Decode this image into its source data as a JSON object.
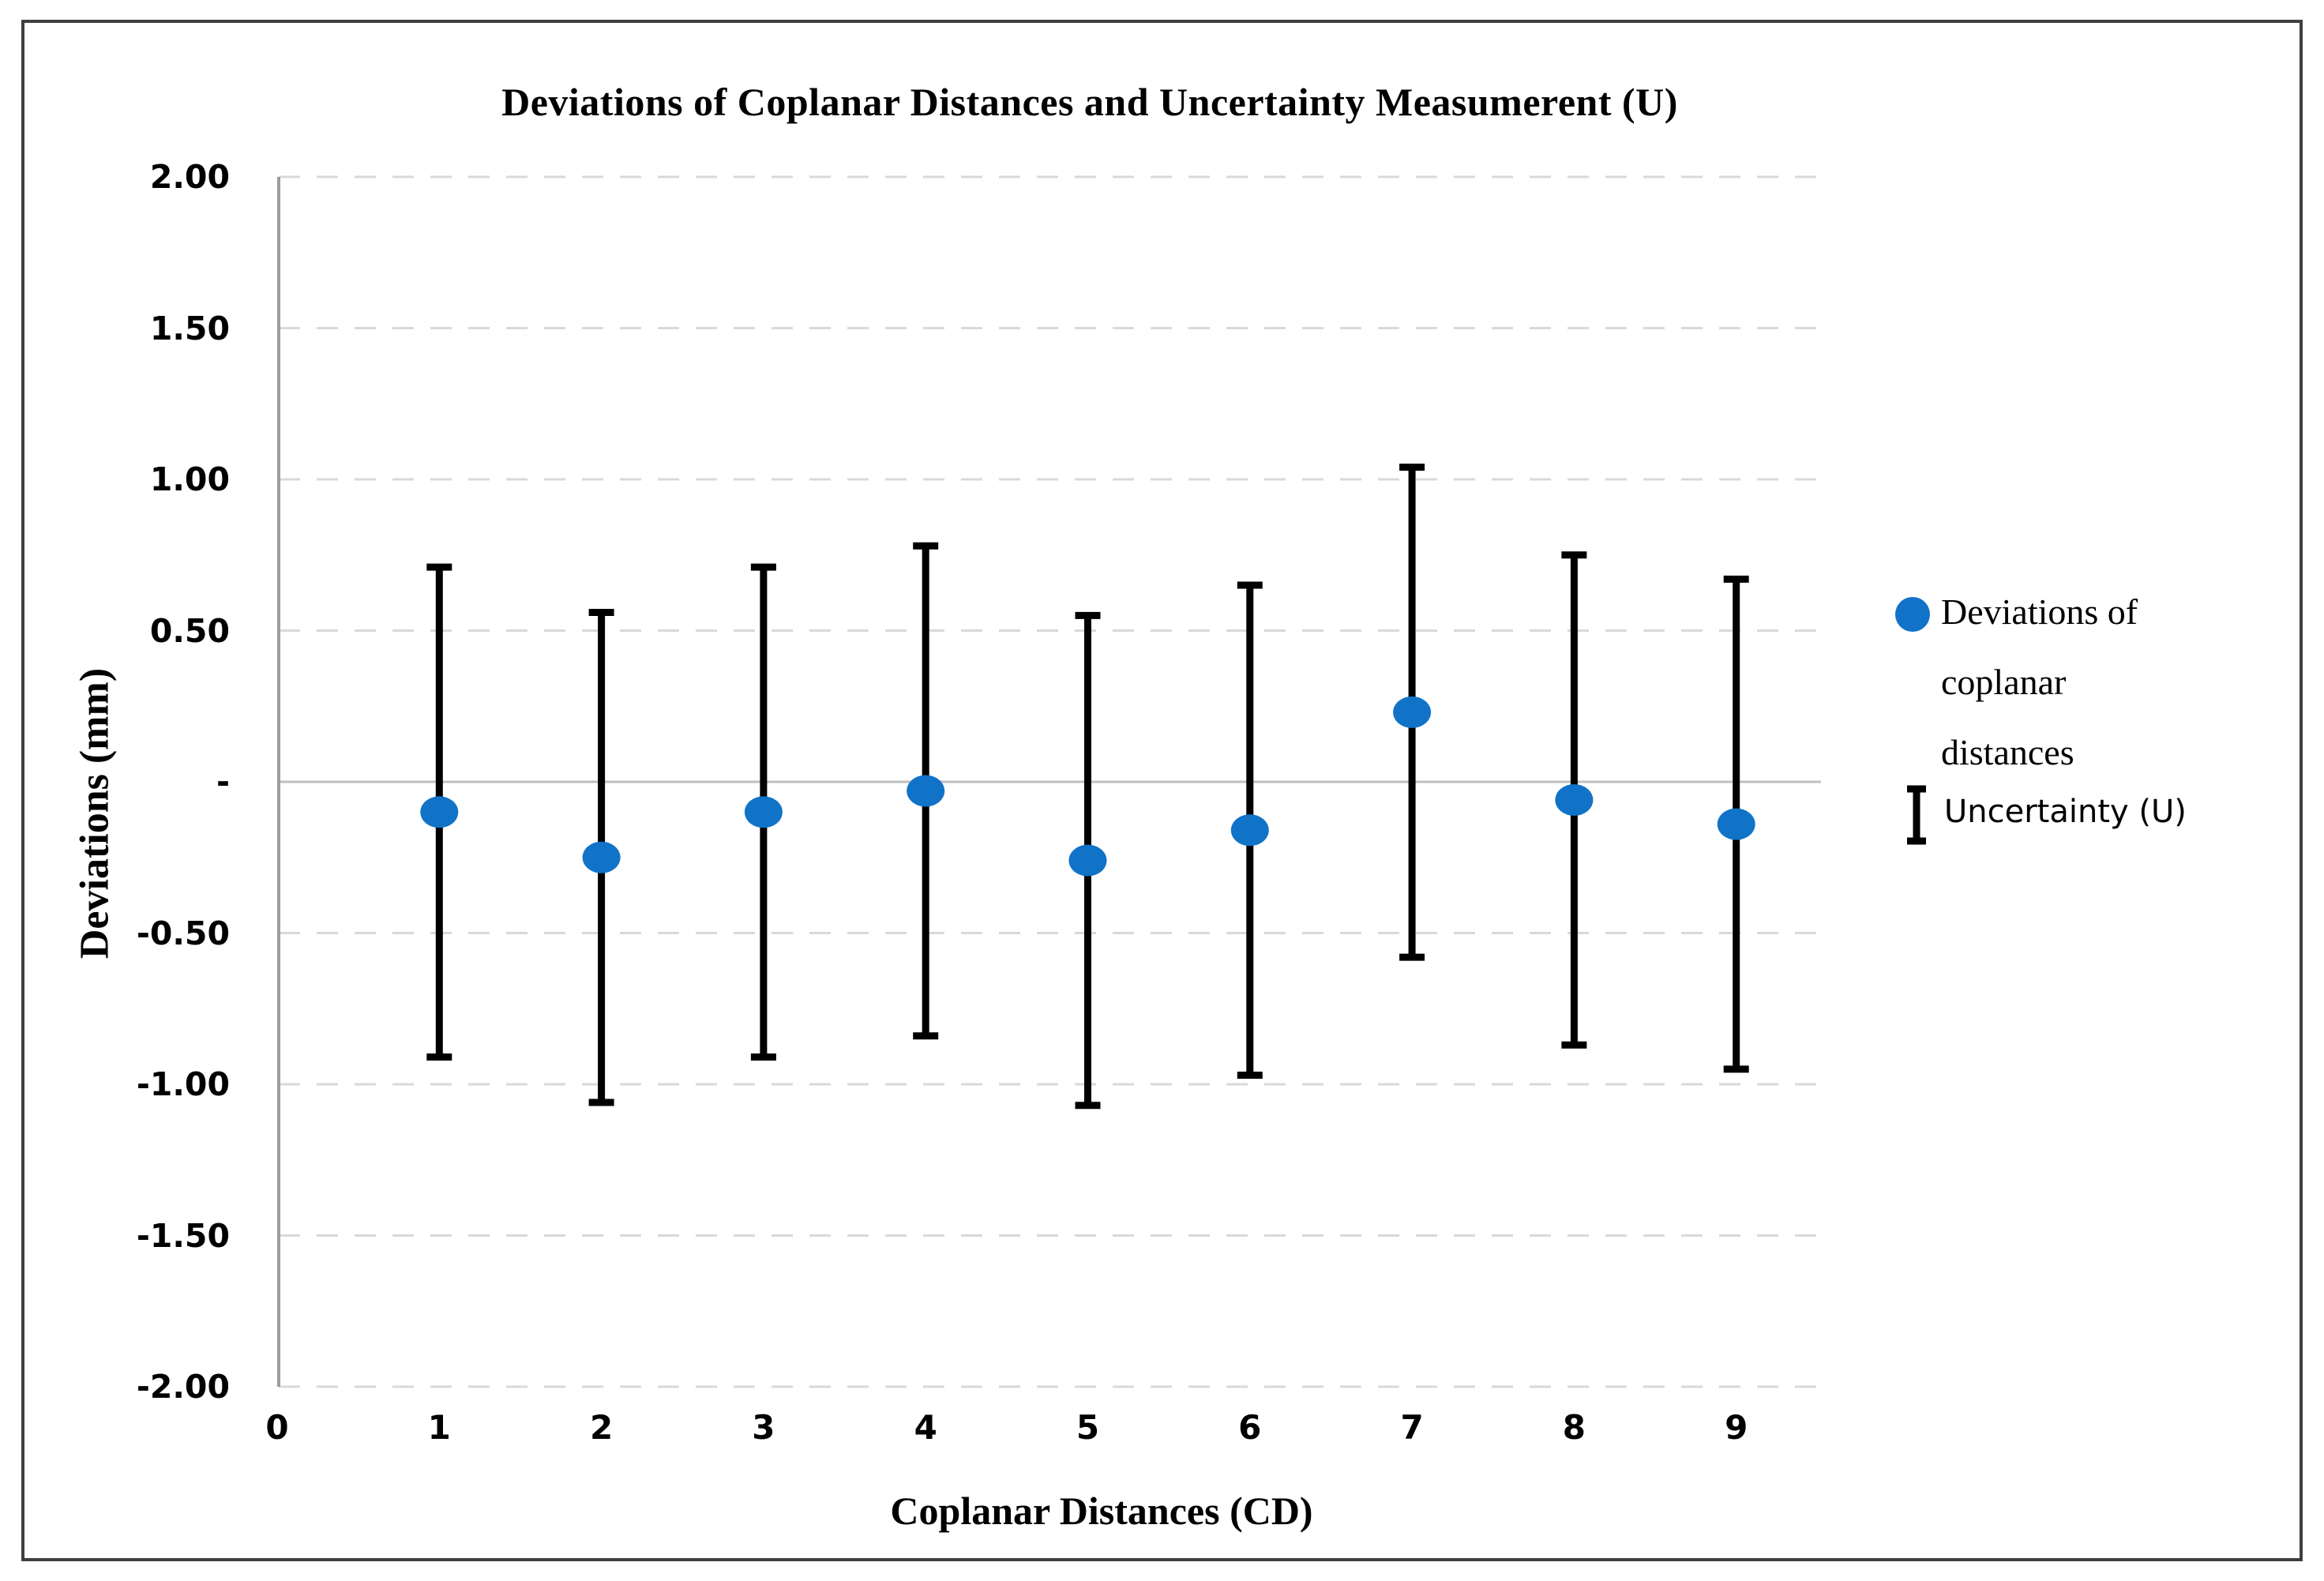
{
  "figure": {
    "title": "Deviations of Coplanar Distances and Uncertainty Measumerent (U)",
    "x_axis": {
      "title": "Coplanar Distances (CD)",
      "tick_labels": [
        "0",
        "1",
        "2",
        "3",
        "4",
        "5",
        "6",
        "7",
        "8",
        "9"
      ]
    },
    "y_axis": {
      "title": "Deviations (mm)",
      "tick_labels": [
        "2.00",
        "1.50",
        "1.00",
        "0.50",
        "-",
        "-0.50",
        "-1.00",
        "-1.50",
        "-2.00"
      ]
    },
    "legend": [
      {
        "label": "Deviations of coplanar distances",
        "marker": "circle-icon"
      },
      {
        "label": "Uncertainty (U)",
        "marker": "error-bar-icon"
      }
    ]
  },
  "chart_data": {
    "type": "scatter",
    "title": "Deviations of Coplanar Distances and Uncertainty Measumerent (U)",
    "xlabel": "Coplanar Distances (CD)",
    "ylabel": "Deviations (mm)",
    "xlim": [
      0,
      9.5
    ],
    "ylim": [
      -2.0,
      2.0
    ],
    "grid": "horizontal-dashed",
    "legend_position": "right",
    "x": [
      1,
      2,
      3,
      4,
      5,
      6,
      7,
      8,
      9
    ],
    "series": [
      {
        "name": "Deviations of coplanar distances",
        "values": [
          -0.1,
          -0.25,
          -0.1,
          -0.03,
          -0.26,
          -0.16,
          0.23,
          -0.06,
          -0.14
        ]
      }
    ],
    "error_bars": {
      "name": "Uncertainty (U)",
      "plus_minus": 0.81,
      "upper": [
        0.71,
        0.56,
        0.71,
        0.78,
        0.55,
        0.65,
        1.04,
        0.75,
        0.67
      ],
      "lower": [
        -0.91,
        -1.06,
        -0.91,
        -0.84,
        -1.07,
        -0.97,
        -0.58,
        -0.87,
        -0.95
      ]
    },
    "ytick_values": [
      2.0,
      1.5,
      1.0,
      0.5,
      0.0,
      -0.5,
      -1.0,
      -1.5,
      -2.0
    ],
    "ytick_labels": [
      "2.00",
      "1.50",
      "1.00",
      "0.50",
      "-",
      "-0.50",
      "-1.00",
      "-1.50",
      "-2.00"
    ],
    "xtick_values": [
      0,
      1,
      2,
      3,
      4,
      5,
      6,
      7,
      8,
      9
    ],
    "xtick_labels": [
      "0",
      "1",
      "2",
      "3",
      "4",
      "5",
      "6",
      "7",
      "8",
      "9"
    ]
  },
  "colors": {
    "marker_blue": "#1173C8",
    "error_bar": "#000000",
    "gridline_dashed": "#d9d9d9",
    "zero_line": "#bfbfbf",
    "y_axis_line": "#9c9c9c",
    "figure_border": "#3f3f3f",
    "text": "#000000"
  }
}
